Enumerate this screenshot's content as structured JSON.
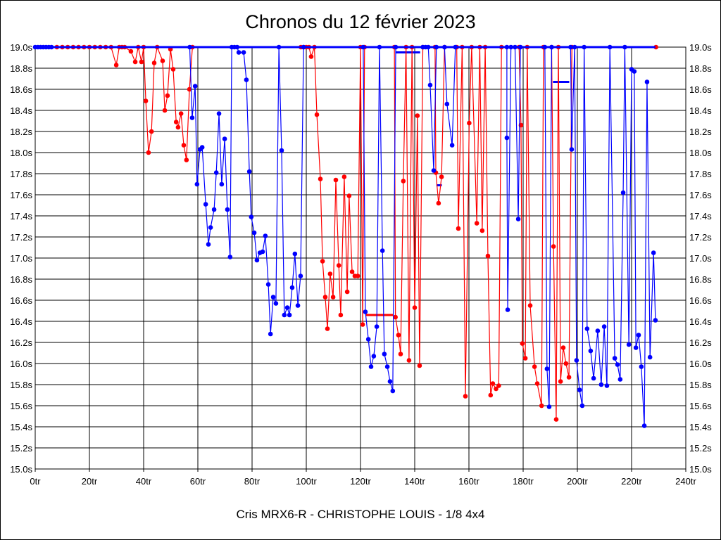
{
  "chart_data": {
    "type": "line",
    "title": "Chronos du 12 février 2023",
    "subtitle": "Cris MRX6-R - CHRISTOPHE LOUIS - 1/8 4x4",
    "xlabel": "",
    "ylabel": "",
    "xlim": [
      0,
      240
    ],
    "ylim": [
      15.0,
      19.0
    ],
    "x_ticks": [
      "0tr",
      "20tr",
      "40tr",
      "60tr",
      "80tr",
      "100tr",
      "120tr",
      "140tr",
      "160tr",
      "180tr",
      "200tr",
      "220tr",
      "240tr"
    ],
    "y_ticks": [
      "15.0s",
      "15.2s",
      "15.4s",
      "15.6s",
      "15.8s",
      "16.0s",
      "16.2s",
      "16.4s",
      "16.6s",
      "16.8s",
      "17.0s",
      "17.2s",
      "17.4s",
      "17.6s",
      "17.8s",
      "18.0s",
      "18.2s",
      "18.4s",
      "18.6s",
      "18.8s",
      "19.0s"
    ],
    "grid": true,
    "series": [
      {
        "name": "red",
        "color": "#ff0000",
        "points": [
          [
            8,
            19
          ],
          [
            10,
            19
          ],
          [
            12,
            19
          ],
          [
            14,
            19
          ],
          [
            16,
            19
          ],
          [
            18,
            19
          ],
          [
            20,
            19
          ],
          [
            22,
            19
          ],
          [
            24,
            19
          ],
          [
            26,
            19
          ],
          [
            28,
            19
          ],
          [
            29.9,
            18.83
          ],
          [
            31,
            19
          ],
          [
            32,
            19
          ],
          [
            33,
            19
          ],
          [
            35.3,
            18.96
          ],
          [
            36.9,
            18.86
          ],
          [
            38,
            19
          ],
          [
            39.2,
            18.86
          ],
          [
            40,
            19
          ],
          [
            40.8,
            18.49
          ],
          [
            41.8,
            18.0
          ],
          [
            42.9,
            18.2
          ],
          [
            43.9,
            18.85
          ],
          [
            45,
            19
          ],
          [
            47,
            18.87
          ],
          [
            47.8,
            18.4
          ],
          [
            48.8,
            18.54
          ],
          [
            49.9,
            18.98
          ],
          [
            50.9,
            18.79
          ],
          [
            52,
            18.29
          ],
          [
            52.7,
            18.24
          ],
          [
            53.8,
            18.37
          ],
          [
            54.8,
            18.07
          ],
          [
            55.8,
            17.93
          ],
          [
            56.9,
            18.6
          ],
          [
            58,
            19
          ],
          [
            98,
            19
          ],
          [
            99,
            19
          ],
          [
            100,
            19
          ],
          [
            101,
            19
          ],
          [
            101.8,
            18.91
          ],
          [
            103,
            19
          ],
          [
            103.9,
            18.36
          ],
          [
            105.2,
            17.75
          ],
          [
            106,
            16.97
          ],
          [
            107,
            16.63
          ],
          [
            107.8,
            16.33
          ],
          [
            108.8,
            16.85
          ],
          [
            109.9,
            16.63
          ],
          [
            110.9,
            17.74
          ],
          [
            112,
            16.93
          ],
          [
            112.7,
            16.46
          ],
          [
            114,
            17.77
          ],
          [
            115.1,
            16.68
          ],
          [
            115.8,
            17.59
          ],
          [
            116.9,
            16.87
          ],
          [
            117.9,
            16.83
          ],
          [
            119,
            16.83
          ],
          [
            120,
            19
          ],
          [
            120.8,
            16.37
          ],
          [
            121.5,
            19
          ],
          [
            132.5,
            19
          ],
          [
            132.9,
            16.44
          ],
          [
            134,
            16.27
          ],
          [
            134.8,
            16.09
          ],
          [
            135.8,
            17.73
          ],
          [
            136.8,
            19
          ],
          [
            137.9,
            16.03
          ],
          [
            139,
            19
          ],
          [
            140,
            16.53
          ],
          [
            141,
            18.35
          ],
          [
            141.8,
            15.98
          ],
          [
            143,
            19
          ],
          [
            147.5,
            19
          ],
          [
            147.8,
            17.81
          ],
          [
            148.8,
            17.52
          ],
          [
            149.9,
            17.77
          ],
          [
            151,
            19
          ],
          [
            155.5,
            19
          ],
          [
            156.1,
            17.28
          ],
          [
            157.5,
            19
          ],
          [
            158.7,
            15.69
          ],
          [
            160.1,
            18.28
          ],
          [
            161,
            19
          ],
          [
            162.9,
            17.33
          ],
          [
            164,
            19
          ],
          [
            164.9,
            17.26
          ],
          [
            166,
            19
          ],
          [
            167,
            17.02
          ],
          [
            168,
            15.7
          ],
          [
            168.8,
            15.81
          ],
          [
            170,
            15.76
          ],
          [
            171,
            15.79
          ],
          [
            172,
            19
          ],
          [
            178.5,
            19
          ],
          [
            179.2,
            18.26
          ],
          [
            179.7,
            16.19
          ],
          [
            180.8,
            16.05
          ],
          [
            181.5,
            19
          ],
          [
            182.6,
            16.55
          ],
          [
            184.2,
            15.97
          ],
          [
            185.2,
            15.81
          ],
          [
            186.8,
            15.6
          ],
          [
            187.5,
            19
          ],
          [
            190.5,
            19
          ],
          [
            191.2,
            17.11
          ],
          [
            192.2,
            15.47
          ],
          [
            193,
            19
          ],
          [
            193.8,
            15.83
          ],
          [
            194.8,
            16.15
          ],
          [
            195.8,
            16.0
          ],
          [
            196.9,
            15.87
          ],
          [
            198,
            19
          ],
          [
            229,
            19
          ]
        ]
      },
      {
        "name": "blue",
        "color": "#0000ff",
        "points": [
          [
            0,
            19
          ],
          [
            1,
            19
          ],
          [
            2,
            19
          ],
          [
            3,
            19
          ],
          [
            4,
            19
          ],
          [
            5,
            19
          ],
          [
            6,
            19
          ],
          [
            57,
            19
          ],
          [
            57.9,
            18.33
          ],
          [
            59,
            18.63
          ],
          [
            59.7,
            17.7
          ],
          [
            60.8,
            18.03
          ],
          [
            61.6,
            18.05
          ],
          [
            62.9,
            17.51
          ],
          [
            63.9,
            17.13
          ],
          [
            64.7,
            17.29
          ],
          [
            66,
            17.46
          ],
          [
            66.8,
            17.81
          ],
          [
            67.8,
            18.37
          ],
          [
            68.8,
            17.7
          ],
          [
            69.9,
            18.13
          ],
          [
            70.9,
            17.46
          ],
          [
            71.9,
            17.01
          ],
          [
            72.5,
            19
          ],
          [
            73.5,
            19
          ],
          [
            74.5,
            19
          ],
          [
            75.1,
            18.95
          ],
          [
            76.9,
            18.95
          ],
          [
            77.9,
            18.69
          ],
          [
            79,
            17.82
          ],
          [
            79.7,
            17.39
          ],
          [
            80.8,
            17.24
          ],
          [
            81.8,
            16.98
          ],
          [
            82.9,
            17.05
          ],
          [
            83.9,
            17.06
          ],
          [
            84.9,
            17.21
          ],
          [
            86,
            16.75
          ],
          [
            86.8,
            16.28
          ],
          [
            87.8,
            16.63
          ],
          [
            88.8,
            16.57
          ],
          [
            89.9,
            19
          ],
          [
            90.9,
            18.02
          ],
          [
            91.9,
            16.46
          ],
          [
            93,
            16.53
          ],
          [
            93.8,
            16.46
          ],
          [
            94.8,
            16.72
          ],
          [
            95.8,
            17.04
          ],
          [
            96.9,
            16.55
          ],
          [
            97.9,
            16.83
          ],
          [
            99,
            19
          ],
          [
            121,
            19
          ],
          [
            121.8,
            16.49
          ],
          [
            122.9,
            16.23
          ],
          [
            123.9,
            15.97
          ],
          [
            124.9,
            16.07
          ],
          [
            126,
            16.35
          ],
          [
            127,
            19
          ],
          [
            128.1,
            17.07
          ],
          [
            128.8,
            16.09
          ],
          [
            129.9,
            15.97
          ],
          [
            130.9,
            15.83
          ],
          [
            131.9,
            15.74
          ],
          [
            133,
            19
          ],
          [
            143,
            19
          ],
          [
            144,
            19
          ],
          [
            145,
            19
          ],
          [
            145.7,
            18.64
          ],
          [
            147,
            17.83
          ],
          [
            148,
            19
          ],
          [
            151,
            19
          ],
          [
            151.9,
            18.46
          ],
          [
            153.8,
            18.07
          ],
          [
            155,
            19
          ],
          [
            174,
            19
          ],
          [
            174,
            18.14
          ],
          [
            174.3,
            16.51
          ],
          [
            175.5,
            19
          ],
          [
            177,
            19
          ],
          [
            178.2,
            17.37
          ],
          [
            179,
            19
          ],
          [
            188,
            19
          ],
          [
            188.8,
            15.95
          ],
          [
            189.6,
            15.59
          ],
          [
            190.5,
            19
          ],
          [
            197.5,
            19
          ],
          [
            197.9,
            18.03
          ],
          [
            199,
            19
          ],
          [
            199.7,
            16.03
          ],
          [
            200.8,
            15.75
          ],
          [
            201.8,
            15.6
          ],
          [
            202.5,
            19
          ],
          [
            203.6,
            16.33
          ],
          [
            204.9,
            16.12
          ],
          [
            206,
            15.86
          ],
          [
            207.5,
            16.31
          ],
          [
            208.8,
            15.8
          ],
          [
            209.9,
            16.35
          ],
          [
            210.9,
            15.79
          ],
          [
            212,
            19
          ],
          [
            213.8,
            16.05
          ],
          [
            214.8,
            15.99
          ],
          [
            215.8,
            15.85
          ],
          [
            216.9,
            17.62
          ],
          [
            217.5,
            19
          ],
          [
            219,
            16.18
          ],
          [
            220,
            18.79
          ],
          [
            221,
            18.77
          ],
          [
            221.6,
            16.15
          ],
          [
            222.6,
            16.27
          ],
          [
            223.6,
            15.97
          ],
          [
            224.7,
            15.41
          ],
          [
            225.7,
            18.67
          ],
          [
            226.8,
            16.06
          ],
          [
            228.1,
            17.05
          ],
          [
            228.8,
            16.41
          ]
        ]
      }
    ],
    "reference_lines": [
      {
        "color": "#ff0000",
        "x": [
          122,
          132
        ],
        "y": 16.46
      },
      {
        "color": "#0000ff",
        "x": [
          133,
          142
        ],
        "y": 18.95
      },
      {
        "color": "#0000ff",
        "x": [
          148,
          150
        ],
        "y": 17.69
      },
      {
        "color": "#0000ff",
        "x": [
          191,
          197
        ],
        "y": 18.67
      }
    ]
  }
}
